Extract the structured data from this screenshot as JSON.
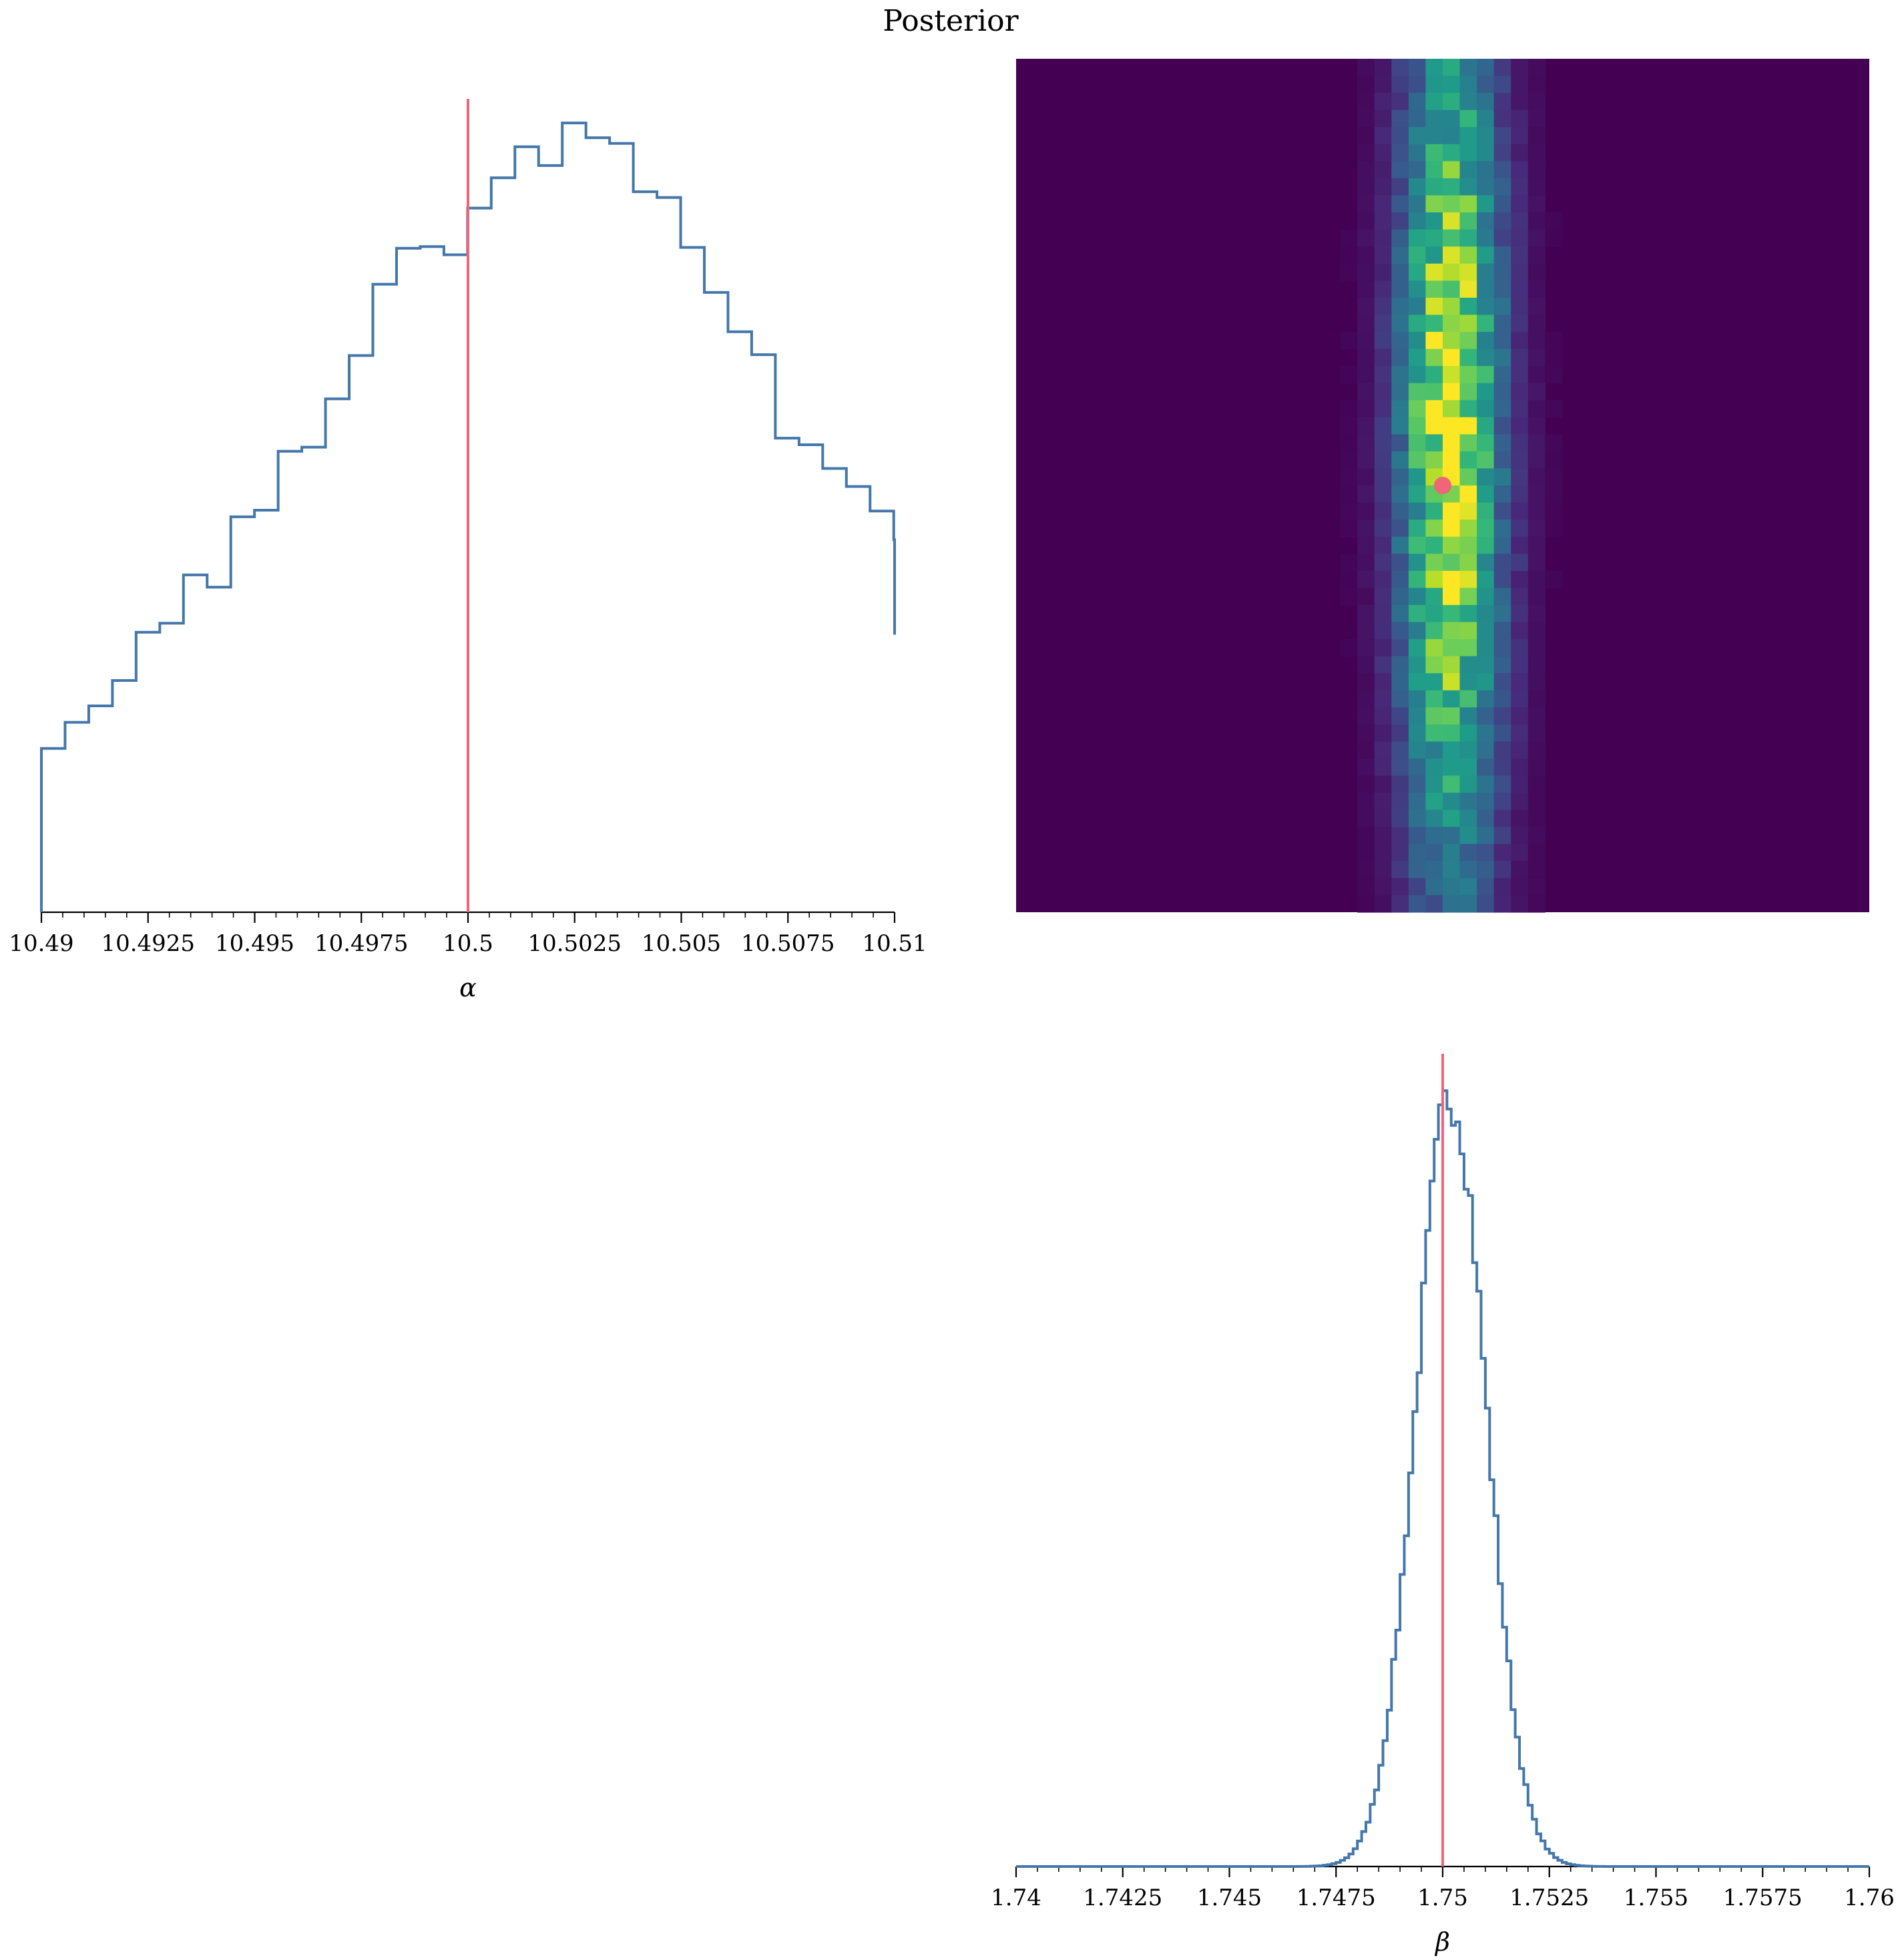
{
  "title": "Posterior",
  "colors": {
    "hist_line": "#4477aa",
    "truth_line": "#ee6677",
    "truth_point": "#ee6677",
    "colormap": "viridis"
  },
  "chart_data": [
    {
      "panel": "alpha-marginal",
      "type": "histogram-step",
      "xlabel": "α",
      "xlim": [
        10.49,
        10.51
      ],
      "xticks": [
        10.49,
        10.4925,
        10.495,
        10.4975,
        10.5,
        10.5025,
        10.505,
        10.5075,
        10.51
      ],
      "xtick_labels": [
        "10.49",
        "10.4925",
        "10.495",
        "10.4975",
        "10.5",
        "10.5025",
        "10.505",
        "10.5075",
        "10.51"
      ],
      "bin_edges_start": 10.49,
      "bin_width": 0.000555,
      "values": [
        200,
        232,
        252,
        283,
        342,
        353,
        412,
        397,
        483,
        491,
        563,
        568,
        627,
        680,
        767,
        811,
        813,
        803,
        860,
        897,
        935,
        912,
        964,
        946,
        939,
        880,
        873,
        812,
        757,
        709,
        681,
        579,
        571,
        542,
        520,
        490,
        455,
        361,
        339
      ],
      "ylim": [
        0,
        1000
      ],
      "truth": 10.5
    },
    {
      "panel": "joint",
      "type": "heatmap",
      "description_axes": "x: beta, y: alpha",
      "truth_point": {
        "x": 1.75,
        "y": 10.5
      }
    },
    {
      "panel": "beta-marginal",
      "type": "histogram-step",
      "xlabel": "β",
      "xlim": [
        1.74,
        1.76
      ],
      "xticks": [
        1.74,
        1.7425,
        1.745,
        1.7475,
        1.75,
        1.7525,
        1.755,
        1.7575,
        1.76
      ],
      "xtick_labels": [
        "1.74",
        "1.7425",
        "1.745",
        "1.7475",
        "1.75",
        "1.7525",
        "1.755",
        "1.7575",
        "1.76"
      ],
      "gaussian": {
        "mean": 1.7502,
        "sd": 0.00082,
        "peak": 1000,
        "bin_width": 0.0001
      },
      "ylim": [
        0,
        1050
      ],
      "truth": 1.75
    }
  ]
}
